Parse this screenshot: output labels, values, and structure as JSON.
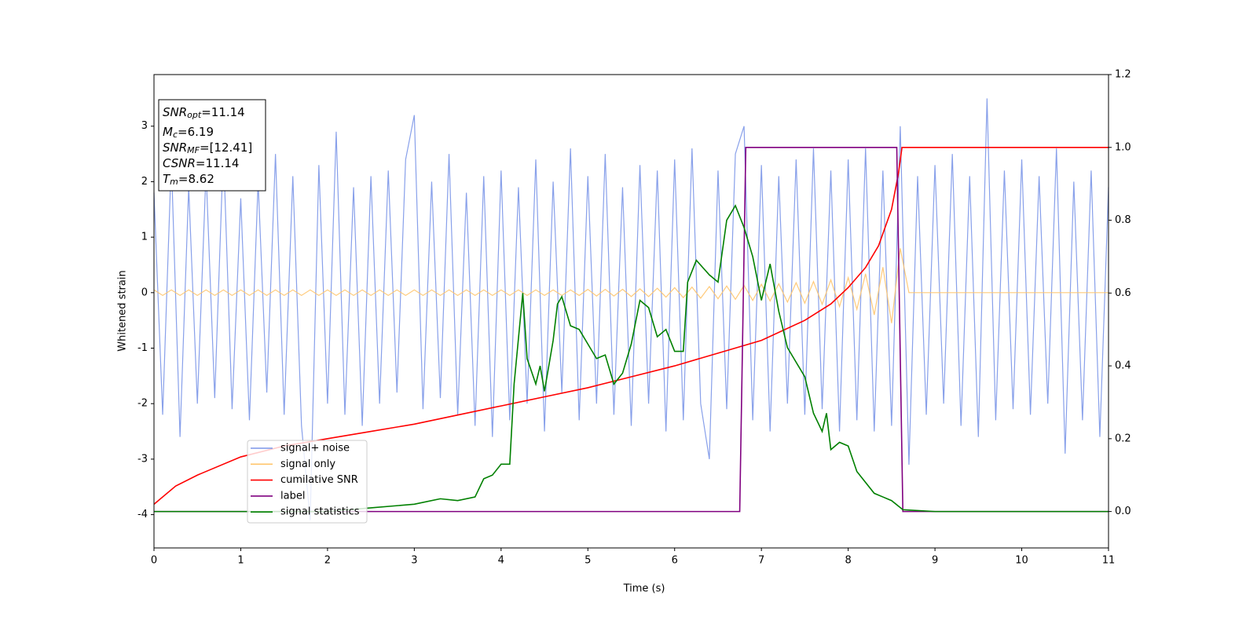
{
  "chart_data": {
    "type": "line",
    "xlabel": "Time (s)",
    "ylabel": "Whitened strain",
    "xlim": [
      0,
      11
    ],
    "xticks": [
      0,
      1,
      2,
      3,
      4,
      5,
      6,
      7,
      8,
      9,
      10,
      11
    ],
    "ylim": [
      -4.6,
      3.93
    ],
    "yticks": [
      -4,
      -3,
      -2,
      -1,
      0,
      1,
      2,
      3
    ],
    "y2lim": [
      -0.1,
      1.2
    ],
    "y2ticks": [
      {
        "value": 0,
        "label": "0.0"
      },
      0.2,
      0.4,
      0.6,
      0.8,
      {
        "value": 1,
        "label": "1.0"
      },
      1.2
    ],
    "legend": "lower left",
    "annotations": [
      {
        "name": "SNR",
        "subscript": "opt",
        "text": "=11.14"
      },
      {
        "name": "M",
        "subscript": "c",
        "text": "=6.19"
      },
      {
        "name": "SNR",
        "subscript": "MF",
        "text": "=[12.41]"
      },
      {
        "name": "CSNR",
        "text": "=11.14"
      },
      {
        "name": "T",
        "subscript": "m",
        "text": "=8.62"
      }
    ],
    "x": [
      0,
      0.1,
      0.2,
      0.3,
      0.4,
      0.5,
      0.6,
      0.7,
      0.8,
      0.9,
      1,
      1.1,
      1.2,
      1.3,
      1.4,
      1.5,
      1.6,
      1.7,
      1.8,
      1.9,
      2,
      2.1,
      2.2,
      2.3,
      2.4,
      2.5,
      2.6,
      2.7,
      2.8,
      2.9,
      3,
      3.1,
      3.2,
      3.3,
      3.4,
      3.5,
      3.6,
      3.7,
      3.8,
      3.9,
      4,
      4.1,
      4.2,
      4.3,
      4.4,
      4.5,
      4.6,
      4.7,
      4.8,
      4.9,
      5,
      5.1,
      5.2,
      5.3,
      5.4,
      5.5,
      5.6,
      5.7,
      5.8,
      5.9,
      6,
      6.1,
      6.2,
      6.3,
      6.4,
      6.5,
      6.6,
      6.7,
      6.8,
      6.9,
      7,
      7.1,
      7.2,
      7.3,
      7.4,
      7.5,
      7.6,
      7.7,
      7.8,
      7.9,
      8,
      8.1,
      8.2,
      8.3,
      8.4,
      8.5,
      8.6,
      8.7,
      8.8,
      8.9,
      9,
      9.1,
      9.2,
      9.3,
      9.4,
      9.5,
      9.6,
      9.7,
      9.8,
      9.9,
      10,
      10.1,
      10.2,
      10.3,
      10.4,
      10.5,
      10.6,
      10.7,
      10.8,
      10.9,
      11
    ],
    "series": [
      {
        "name": "signal+ noise",
        "color": "#7b96e8",
        "values": [
          1.8,
          -2.2,
          2.4,
          -2.6,
          1.9,
          -2.0,
          2.2,
          -1.9,
          2.6,
          -2.1,
          1.7,
          -2.3,
          2.0,
          -1.8,
          2.5,
          -2.2,
          2.1,
          -2.4,
          -4.1,
          2.3,
          -2.0,
          2.9,
          -2.2,
          1.9,
          -2.4,
          2.1,
          -2.0,
          2.2,
          -1.8,
          2.4,
          3.2,
          -2.1,
          2.0,
          -1.9,
          2.5,
          -2.2,
          1.8,
          -2.4,
          2.1,
          -2.6,
          2.2,
          -2.3,
          1.9,
          -2.0,
          2.4,
          -2.5,
          2.0,
          -1.8,
          2.6,
          -2.3,
          2.1,
          -2.0,
          2.5,
          -2.2,
          1.9,
          -2.4,
          2.3,
          -2.0,
          2.2,
          -2.5,
          2.4,
          -2.3,
          2.6,
          -2.0,
          -3.0,
          2.2,
          -2.1,
          2.5,
          3.0,
          -2.3,
          2.3,
          -2.5,
          2.1,
          -2.0,
          2.4,
          -2.2,
          2.6,
          -2.1,
          2.2,
          -2.5,
          2.4,
          -2.3,
          2.6,
          -2.5,
          2.2,
          -2.4,
          3.0,
          -3.1,
          2.1,
          -2.2,
          2.3,
          -2.0,
          2.5,
          -2.4,
          2.1,
          -2.6,
          3.5,
          -2.3,
          2.2,
          -2.1,
          2.4,
          -2.2,
          2.1,
          -2.0,
          2.6,
          -2.9,
          2.0,
          -2.3,
          2.2,
          -2.6,
          1.9
        ]
      },
      {
        "name": "signal only",
        "color": "#ffc46b",
        "values": [
          0.05,
          -0.05,
          0.05,
          -0.05,
          0.05,
          -0.05,
          0.05,
          -0.05,
          0.05,
          -0.05,
          0.05,
          -0.05,
          0.05,
          -0.05,
          0.05,
          -0.05,
          0.05,
          -0.05,
          0.05,
          -0.05,
          0.05,
          -0.05,
          0.05,
          -0.05,
          0.05,
          -0.05,
          0.05,
          -0.05,
          0.05,
          -0.05,
          0.05,
          -0.05,
          0.05,
          -0.05,
          0.05,
          -0.05,
          0.05,
          -0.05,
          0.05,
          -0.05,
          0.05,
          -0.05,
          0.05,
          -0.05,
          0.05,
          -0.05,
          0.05,
          -0.05,
          0.05,
          -0.05,
          0.06,
          -0.06,
          0.06,
          -0.06,
          0.06,
          -0.07,
          0.07,
          -0.07,
          0.08,
          -0.08,
          0.09,
          -0.09,
          0.1,
          -0.1,
          0.11,
          -0.11,
          0.12,
          -0.12,
          0.13,
          -0.14,
          0.15,
          -0.15,
          0.16,
          -0.17,
          0.18,
          -0.19,
          0.2,
          -0.21,
          0.23,
          -0.25,
          0.27,
          -0.3,
          0.34,
          -0.4,
          0.46,
          -0.55,
          0.8,
          0,
          0,
          0,
          0,
          0,
          0,
          0,
          0,
          0,
          0,
          0,
          0,
          0,
          0,
          0,
          0,
          0,
          0,
          0,
          0,
          0,
          0,
          0,
          0
        ]
      },
      {
        "name": "cumilative SNR",
        "color": "#ff0000",
        "axis": "y2",
        "x": [
          0,
          0.25,
          0.5,
          1,
          1.5,
          2,
          2.5,
          3,
          3.5,
          4,
          4.5,
          5,
          5.5,
          6,
          6.5,
          7,
          7.5,
          7.8,
          8,
          8.2,
          8.35,
          8.5,
          8.58,
          8.62,
          11
        ],
        "values": [
          0.02,
          0.07,
          0.1,
          0.15,
          0.18,
          0.2,
          0.22,
          0.24,
          0.265,
          0.29,
          0.315,
          0.34,
          0.37,
          0.4,
          0.435,
          0.47,
          0.525,
          0.57,
          0.615,
          0.67,
          0.73,
          0.83,
          0.93,
          1,
          1
        ]
      },
      {
        "name": "label",
        "color": "#800080",
        "axis": "y2",
        "x": [
          0,
          6.75,
          6.82,
          8.56,
          8.63,
          11
        ],
        "values": [
          0,
          0,
          1,
          1,
          0,
          0
        ]
      },
      {
        "name": "signal statistics",
        "color": "#008000",
        "axis": "y2",
        "x": [
          0,
          2,
          2.5,
          3,
          3.3,
          3.5,
          3.7,
          3.8,
          3.9,
          4,
          4.1,
          4.15,
          4.25,
          4.3,
          4.4,
          4.45,
          4.5,
          4.6,
          4.65,
          4.7,
          4.8,
          4.9,
          5,
          5.1,
          5.2,
          5.3,
          5.4,
          5.5,
          5.6,
          5.7,
          5.8,
          5.9,
          6,
          6.1,
          6.15,
          6.25,
          6.4,
          6.5,
          6.6,
          6.7,
          6.8,
          6.9,
          7,
          7.1,
          7.2,
          7.3,
          7.5,
          7.6,
          7.7,
          7.75,
          7.8,
          7.9,
          8,
          8.1,
          8.3,
          8.4,
          8.5,
          8.63,
          9,
          11
        ],
        "values": [
          0,
          0,
          0.01,
          0.02,
          0.035,
          0.03,
          0.04,
          0.09,
          0.1,
          0.13,
          0.13,
          0.35,
          0.6,
          0.42,
          0.35,
          0.4,
          0.33,
          0.47,
          0.57,
          0.59,
          0.51,
          0.5,
          0.46,
          0.42,
          0.43,
          0.35,
          0.38,
          0.46,
          0.58,
          0.56,
          0.48,
          0.5,
          0.44,
          0.44,
          0.63,
          0.69,
          0.65,
          0.63,
          0.8,
          0.84,
          0.78,
          0.7,
          0.58,
          0.68,
          0.55,
          0.45,
          0.37,
          0.27,
          0.22,
          0.27,
          0.17,
          0.19,
          0.18,
          0.11,
          0.05,
          0.04,
          0.03,
          0.005,
          0,
          0
        ]
      }
    ]
  }
}
